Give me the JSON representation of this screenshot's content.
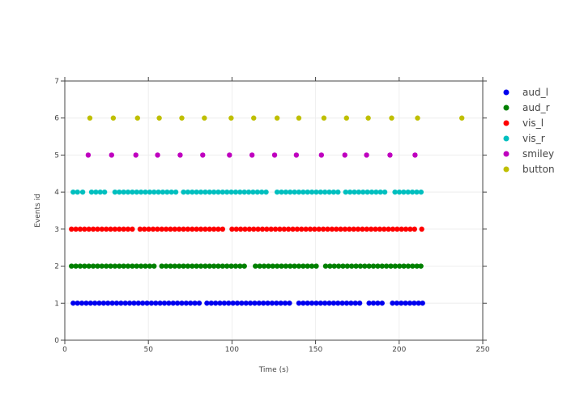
{
  "chart_data": {
    "type": "scatter",
    "title": "",
    "xlabel": "Time (s)",
    "ylabel": "Events id",
    "xlim": [
      0,
      250
    ],
    "ylim": [
      0,
      7
    ],
    "xticks": [
      0,
      50,
      100,
      150,
      200,
      250
    ],
    "yticks": [
      0,
      1,
      2,
      3,
      4,
      5,
      6,
      7
    ],
    "grid": true,
    "legend_position": "right",
    "series": [
      {
        "name": "aud_l",
        "color": "#0000ee",
        "y": 1,
        "x": [
          5,
          7.6,
          10.2,
          12.8,
          15.4,
          18,
          20.6,
          23.2,
          25.8,
          28.4,
          31,
          33.6,
          36.2,
          38.8,
          41.4,
          44,
          46.6,
          49.2,
          51.8,
          54.4,
          57,
          59.6,
          62.2,
          64.8,
          67.4,
          70,
          72.6,
          75.2,
          77.8,
          80.4,
          85,
          87.6,
          90.2,
          92.8,
          95.4,
          98,
          100.6,
          103.2,
          105.8,
          108.4,
          111,
          113.6,
          116.2,
          118.8,
          121.4,
          124,
          126.6,
          129.2,
          131.8,
          134.4,
          140,
          142.6,
          145.2,
          147.8,
          150.4,
          153,
          155.6,
          158.2,
          160.8,
          163.4,
          166,
          168.6,
          171.2,
          173.8,
          176.4,
          182,
          184.6,
          187.2,
          189.8,
          196,
          198.6,
          201.2,
          203.8,
          206.4,
          209,
          211.6,
          214
        ]
      },
      {
        "name": "aud_r",
        "color": "#008000",
        "y": 2,
        "x": [
          4,
          6.6,
          9.2,
          11.8,
          14.4,
          17,
          19.6,
          22.2,
          24.8,
          27.4,
          30,
          32.6,
          35.2,
          37.8,
          40.4,
          43,
          45.6,
          48.2,
          50.8,
          53.4,
          58,
          60.6,
          63.2,
          65.8,
          68.4,
          71,
          73.6,
          76.2,
          78.8,
          81.4,
          84,
          86.6,
          89.2,
          91.8,
          94.4,
          97,
          99.6,
          102.2,
          104.8,
          107.4,
          114,
          116.6,
          119.2,
          121.8,
          124.4,
          127,
          129.6,
          132.2,
          134.8,
          137.4,
          140,
          142.6,
          145.2,
          147.8,
          150.4,
          156,
          158.6,
          161.2,
          163.8,
          166.4,
          169,
          171.6,
          174.2,
          176.8,
          179.4,
          182,
          184.6,
          187.2,
          189.8,
          192.4,
          195,
          197.6,
          200.2,
          202.8,
          205.4,
          208,
          210.6,
          213
        ]
      },
      {
        "name": "vis_l",
        "color": "#ff0000",
        "y": 3,
        "x": [
          4,
          6.6,
          9.2,
          11.8,
          14.4,
          17,
          19.6,
          22.2,
          24.8,
          27.4,
          30,
          32.6,
          35.2,
          37.8,
          40.4,
          45,
          47.6,
          50.2,
          52.8,
          55.4,
          58,
          60.6,
          63.2,
          65.8,
          68.4,
          71,
          73.6,
          76.2,
          78.8,
          81.4,
          84,
          86.6,
          89.2,
          91.8,
          94.4,
          100,
          102.6,
          105.2,
          107.8,
          110.4,
          113,
          115.6,
          118.2,
          120.8,
          123.4,
          126,
          128.6,
          131.2,
          133.8,
          136.4,
          139,
          141.6,
          144.2,
          146.8,
          149.4,
          152,
          154.6,
          157.2,
          159.8,
          162.4,
          165,
          167.6,
          170.2,
          172.8,
          175.4,
          178,
          180.6,
          183.2,
          185.8,
          188.4,
          191,
          193.6,
          196.2,
          198.8,
          201.4,
          204,
          206.6,
          209.2,
          213.5
        ]
      },
      {
        "name": "vis_r",
        "color": "#00bfbf",
        "y": 4,
        "x": [
          5,
          7.6,
          10.7,
          16,
          18.6,
          21.2,
          23.8,
          30,
          32.6,
          35.2,
          37.8,
          40.4,
          43,
          45.6,
          48.2,
          50.8,
          53.4,
          56,
          58.6,
          61.2,
          63.8,
          66.4,
          71,
          73.6,
          76.2,
          78.8,
          81.4,
          84,
          86.6,
          89.2,
          91.8,
          94.4,
          97,
          99.6,
          102.2,
          104.8,
          107.4,
          110,
          112.6,
          115.2,
          117.8,
          120.4,
          127,
          129.6,
          132.2,
          134.8,
          137.4,
          140,
          142.6,
          145.2,
          147.8,
          150.4,
          153,
          155.6,
          158.2,
          160.8,
          163.4,
          168,
          170.6,
          173.2,
          175.8,
          178.4,
          181,
          183.6,
          186.2,
          188.8,
          191.4,
          197.5,
          200.1,
          202.7,
          205.3,
          207.9,
          210.5,
          213.1
        ]
      },
      {
        "name": "smiley",
        "color": "#bf00bf",
        "y": 5,
        "x": [
          14,
          28,
          42.5,
          55.5,
          69,
          82.5,
          98.5,
          112,
          125.5,
          138.5,
          153.5,
          167.5,
          180.5,
          194.5,
          209.5
        ]
      },
      {
        "name": "button",
        "color": "#bfbf00",
        "y": 6,
        "x": [
          15,
          29,
          43.5,
          56.5,
          70,
          83.5,
          99.5,
          113,
          127,
          140,
          155,
          168.5,
          181.5,
          195.5,
          211,
          237.5
        ]
      }
    ]
  }
}
